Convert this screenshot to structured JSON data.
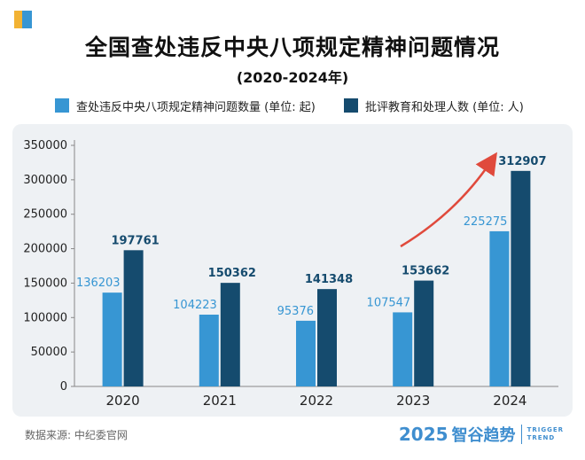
{
  "chart_data": {
    "type": "bar",
    "title": "全国查处违反中央八项规定精神问题情况",
    "subtitle": "(2020-2024年)",
    "categories": [
      "2020",
      "2021",
      "2022",
      "2023",
      "2024"
    ],
    "series": [
      {
        "name": "查处违反中央八项规定精神问题数量 (单位: 起)",
        "color": "#3796d3",
        "values": [
          136203,
          104223,
          95376,
          107547,
          225275
        ]
      },
      {
        "name": "批评教育和处理人数 (单位: 人)",
        "color": "#154b6e",
        "values": [
          197761,
          150362,
          141348,
          153662,
          312907
        ]
      }
    ],
    "yticks": [
      0,
      50000,
      100000,
      150000,
      200000,
      250000,
      300000,
      350000
    ],
    "ylim": [
      0,
      350000
    ],
    "arrow_color": "#e04a3c"
  },
  "footer": {
    "source": "数据来源: 中纪委官网",
    "brand_year": "2025",
    "brand_name": "智谷趋势",
    "brand_en_1": "TRIGGER",
    "brand_en_2": "TREND"
  }
}
